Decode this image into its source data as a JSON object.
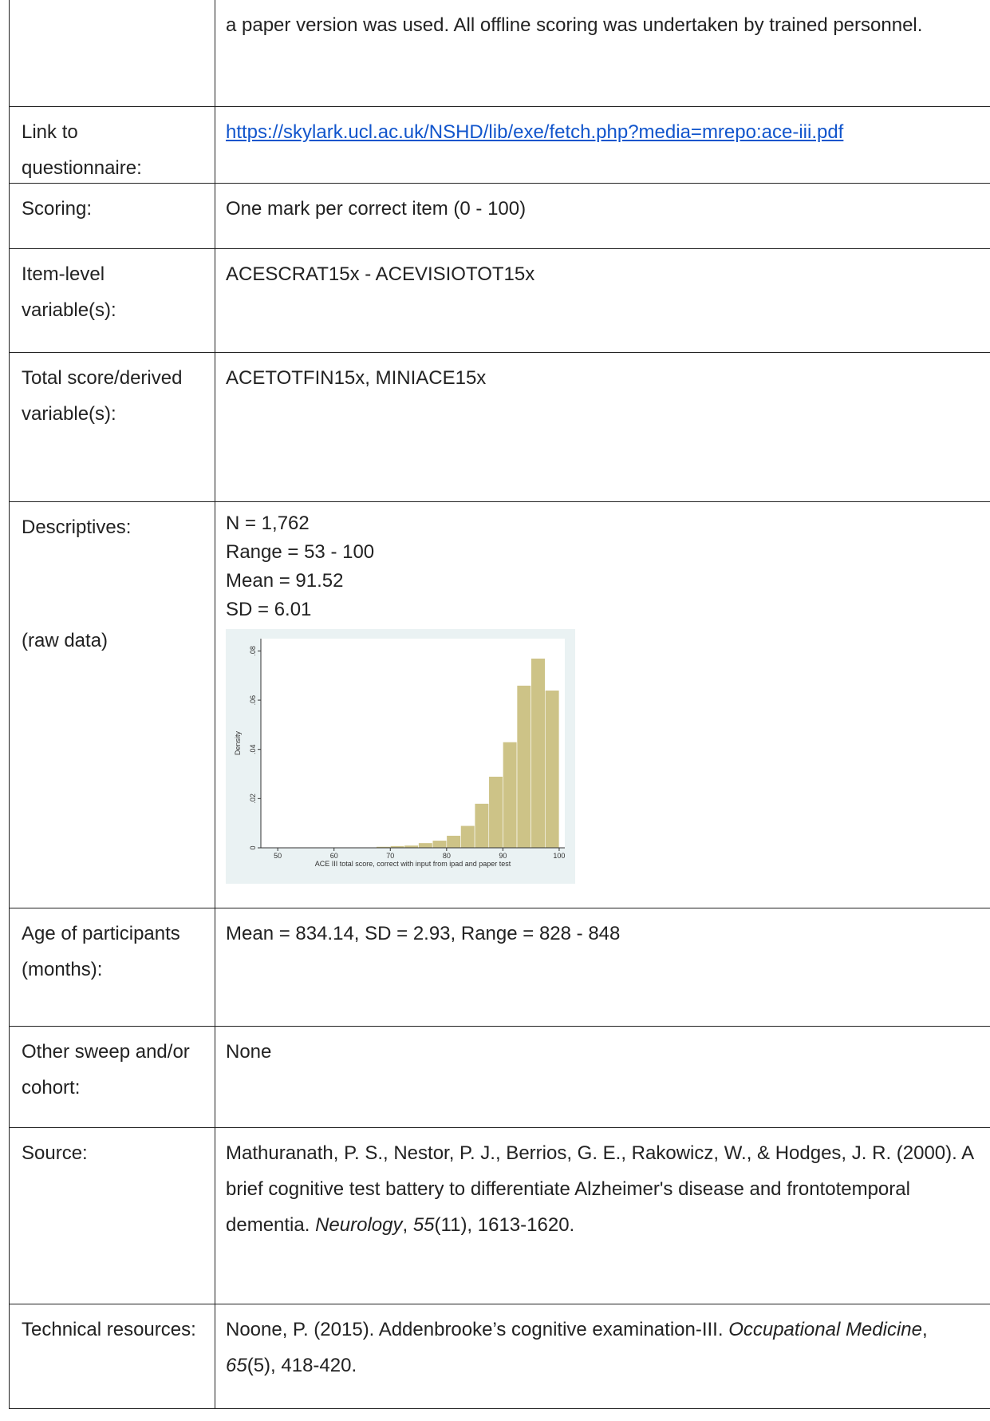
{
  "table": {
    "rows": [
      {
        "runs": [
          {
            "text": "a paper version was used. All offline scoring was undertaken by trained personnel."
          }
        ]
      },
      {
        "label": "Link to questionnaire:",
        "runs": [
          {
            "text": "https://skylark.ucl.ac.uk/NSHD/lib/exe/fetch.php?media=mrepo:ace-iii.pdf",
            "link": true
          }
        ]
      },
      {
        "label": "Scoring:",
        "runs": [
          {
            "text": "One mark per correct item (0 - 100)"
          }
        ]
      },
      {
        "label": "Item-level variable(s):",
        "runs": [
          {
            "text": "ACESCRAT15x - ACEVISIOTOT15x"
          }
        ]
      },
      {
        "label": "Total score/derived variable(s):",
        "runs": [
          {
            "text": "ACETOTFIN15x, MINIACE15x"
          }
        ]
      },
      {
        "label": "Descriptives:",
        "label_note": "(raw data)",
        "lines": [
          "N = 1,762",
          "Range = 53 - 100",
          "Mean = 91.52",
          "SD = 6.01"
        ]
      },
      {
        "label": "Age of participants (months):",
        "runs": [
          {
            "text": "Mean = 834.14, SD = 2.93, Range = 828 - 848"
          }
        ]
      },
      {
        "label": "Other sweep and/or cohort:",
        "runs": [
          {
            "text": "None"
          }
        ]
      },
      {
        "label": "Source:",
        "runs": [
          {
            "text": "Mathuranath, P. S., Nestor, P. J., Berrios, G. E., Rakowicz, W., & Hodges, J. R. (2000). A brief cognitive test battery to differentiate Alzheimer's disease and frontotemporal dementia. "
          },
          {
            "text": "Neurology",
            "italic": true
          },
          {
            "text": ", "
          },
          {
            "text": "55",
            "italic": true
          },
          {
            "text": "(11), 1613-1620."
          }
        ]
      },
      {
        "label": "Technical resources:",
        "runs": [
          {
            "text": "Noone, P. (2015). Addenbrooke’s cognitive examination-III. "
          },
          {
            "text": "Occupational Medicine",
            "italic": true
          },
          {
            "text": ", "
          },
          {
            "text": "65",
            "italic": true
          },
          {
            "text": "(5), 418-420."
          }
        ]
      }
    ]
  },
  "chart_data": {
    "type": "histogram",
    "x_label": "ACE III total score, correct with input from ipad and paper test",
    "y_label": "Density",
    "bins": [
      52.5,
      55,
      57.5,
      60,
      62.5,
      65,
      67.5,
      70,
      72.5,
      75,
      77.5,
      80,
      82.5,
      85,
      87.5,
      90,
      92.5,
      95,
      97.5,
      100
    ],
    "values": [
      0.0002,
      0.0002,
      0.0002,
      0.0002,
      0.0002,
      0.0002,
      0.0005,
      0.0008,
      0.001,
      0.002,
      0.003,
      0.005,
      0.009,
      0.018,
      0.029,
      0.043,
      0.066,
      0.077,
      0.064
    ],
    "color": "#cdc387",
    "xlim": [
      47,
      101
    ],
    "ylim": [
      0,
      0.085
    ],
    "xticks": [
      50,
      60,
      70,
      80,
      90,
      100
    ],
    "yticks": [
      0,
      {
        "value": 0.02,
        "label": ".02"
      },
      {
        "value": 0.04,
        "label": ".04"
      },
      {
        "value": 0.06,
        "label": ".06"
      },
      {
        "value": 0.08,
        "label": ".08"
      }
    ]
  }
}
